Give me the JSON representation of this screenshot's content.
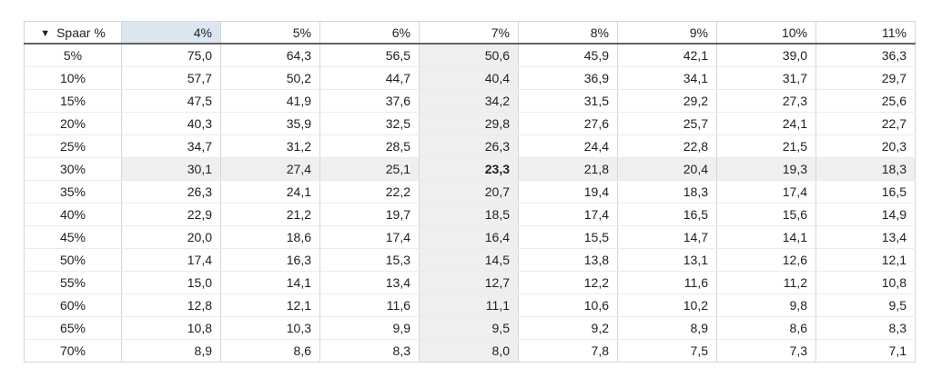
{
  "table": {
    "corner": {
      "sort_icon": "▼",
      "label": "Spaar %"
    },
    "columns": [
      "4%",
      "5%",
      "6%",
      "7%",
      "8%",
      "9%",
      "10%",
      "11%"
    ],
    "rows": [
      {
        "label": "5%",
        "values": [
          "75,0",
          "64,3",
          "56,5",
          "50,6",
          "45,9",
          "42,1",
          "39,0",
          "36,3"
        ]
      },
      {
        "label": "10%",
        "values": [
          "57,7",
          "50,2",
          "44,7",
          "40,4",
          "36,9",
          "34,1",
          "31,7",
          "29,7"
        ]
      },
      {
        "label": "15%",
        "values": [
          "47,5",
          "41,9",
          "37,6",
          "34,2",
          "31,5",
          "29,2",
          "27,3",
          "25,6"
        ]
      },
      {
        "label": "20%",
        "values": [
          "40,3",
          "35,9",
          "32,5",
          "29,8",
          "27,6",
          "25,7",
          "24,1",
          "22,7"
        ]
      },
      {
        "label": "25%",
        "values": [
          "34,7",
          "31,2",
          "28,5",
          "26,3",
          "24,4",
          "22,8",
          "21,5",
          "20,3"
        ]
      },
      {
        "label": "30%",
        "values": [
          "30,1",
          "27,4",
          "25,1",
          "23,3",
          "21,8",
          "20,4",
          "19,3",
          "18,3"
        ]
      },
      {
        "label": "35%",
        "values": [
          "26,3",
          "24,1",
          "22,2",
          "20,7",
          "19,4",
          "18,3",
          "17,4",
          "16,5"
        ]
      },
      {
        "label": "40%",
        "values": [
          "22,9",
          "21,2",
          "19,7",
          "18,5",
          "17,4",
          "16,5",
          "15,6",
          "14,9"
        ]
      },
      {
        "label": "45%",
        "values": [
          "20,0",
          "18,6",
          "17,4",
          "16,4",
          "15,5",
          "14,7",
          "14,1",
          "13,4"
        ]
      },
      {
        "label": "50%",
        "values": [
          "17,4",
          "16,3",
          "15,3",
          "14,5",
          "13,8",
          "13,1",
          "12,6",
          "12,1"
        ]
      },
      {
        "label": "55%",
        "values": [
          "15,0",
          "14,1",
          "13,4",
          "12,7",
          "12,2",
          "11,6",
          "11,2",
          "10,8"
        ]
      },
      {
        "label": "60%",
        "values": [
          "12,8",
          "12,1",
          "11,6",
          "11,1",
          "10,6",
          "10,2",
          "9,8",
          "9,5"
        ]
      },
      {
        "label": "65%",
        "values": [
          "10,8",
          "10,3",
          "9,9",
          "9,5",
          "9,2",
          "8,9",
          "8,6",
          "8,3"
        ]
      },
      {
        "label": "70%",
        "values": [
          "8,9",
          "8,6",
          "8,3",
          "8,0",
          "7,8",
          "7,5",
          "7,3",
          "7,1"
        ]
      }
    ],
    "highlight": {
      "selected_column_header": "4%",
      "shaded_column": "7%",
      "shaded_row": "30%",
      "bold_cell": {
        "row": "30%",
        "column": "7%"
      }
    },
    "colors": {
      "selected_header_bg": "#dce6f1",
      "shaded_bg": "#efefef",
      "header_rule": "#636363",
      "grid_line": "#d6d6d6",
      "row_line": "#ebebeb",
      "text": "#1f1f1f"
    }
  }
}
